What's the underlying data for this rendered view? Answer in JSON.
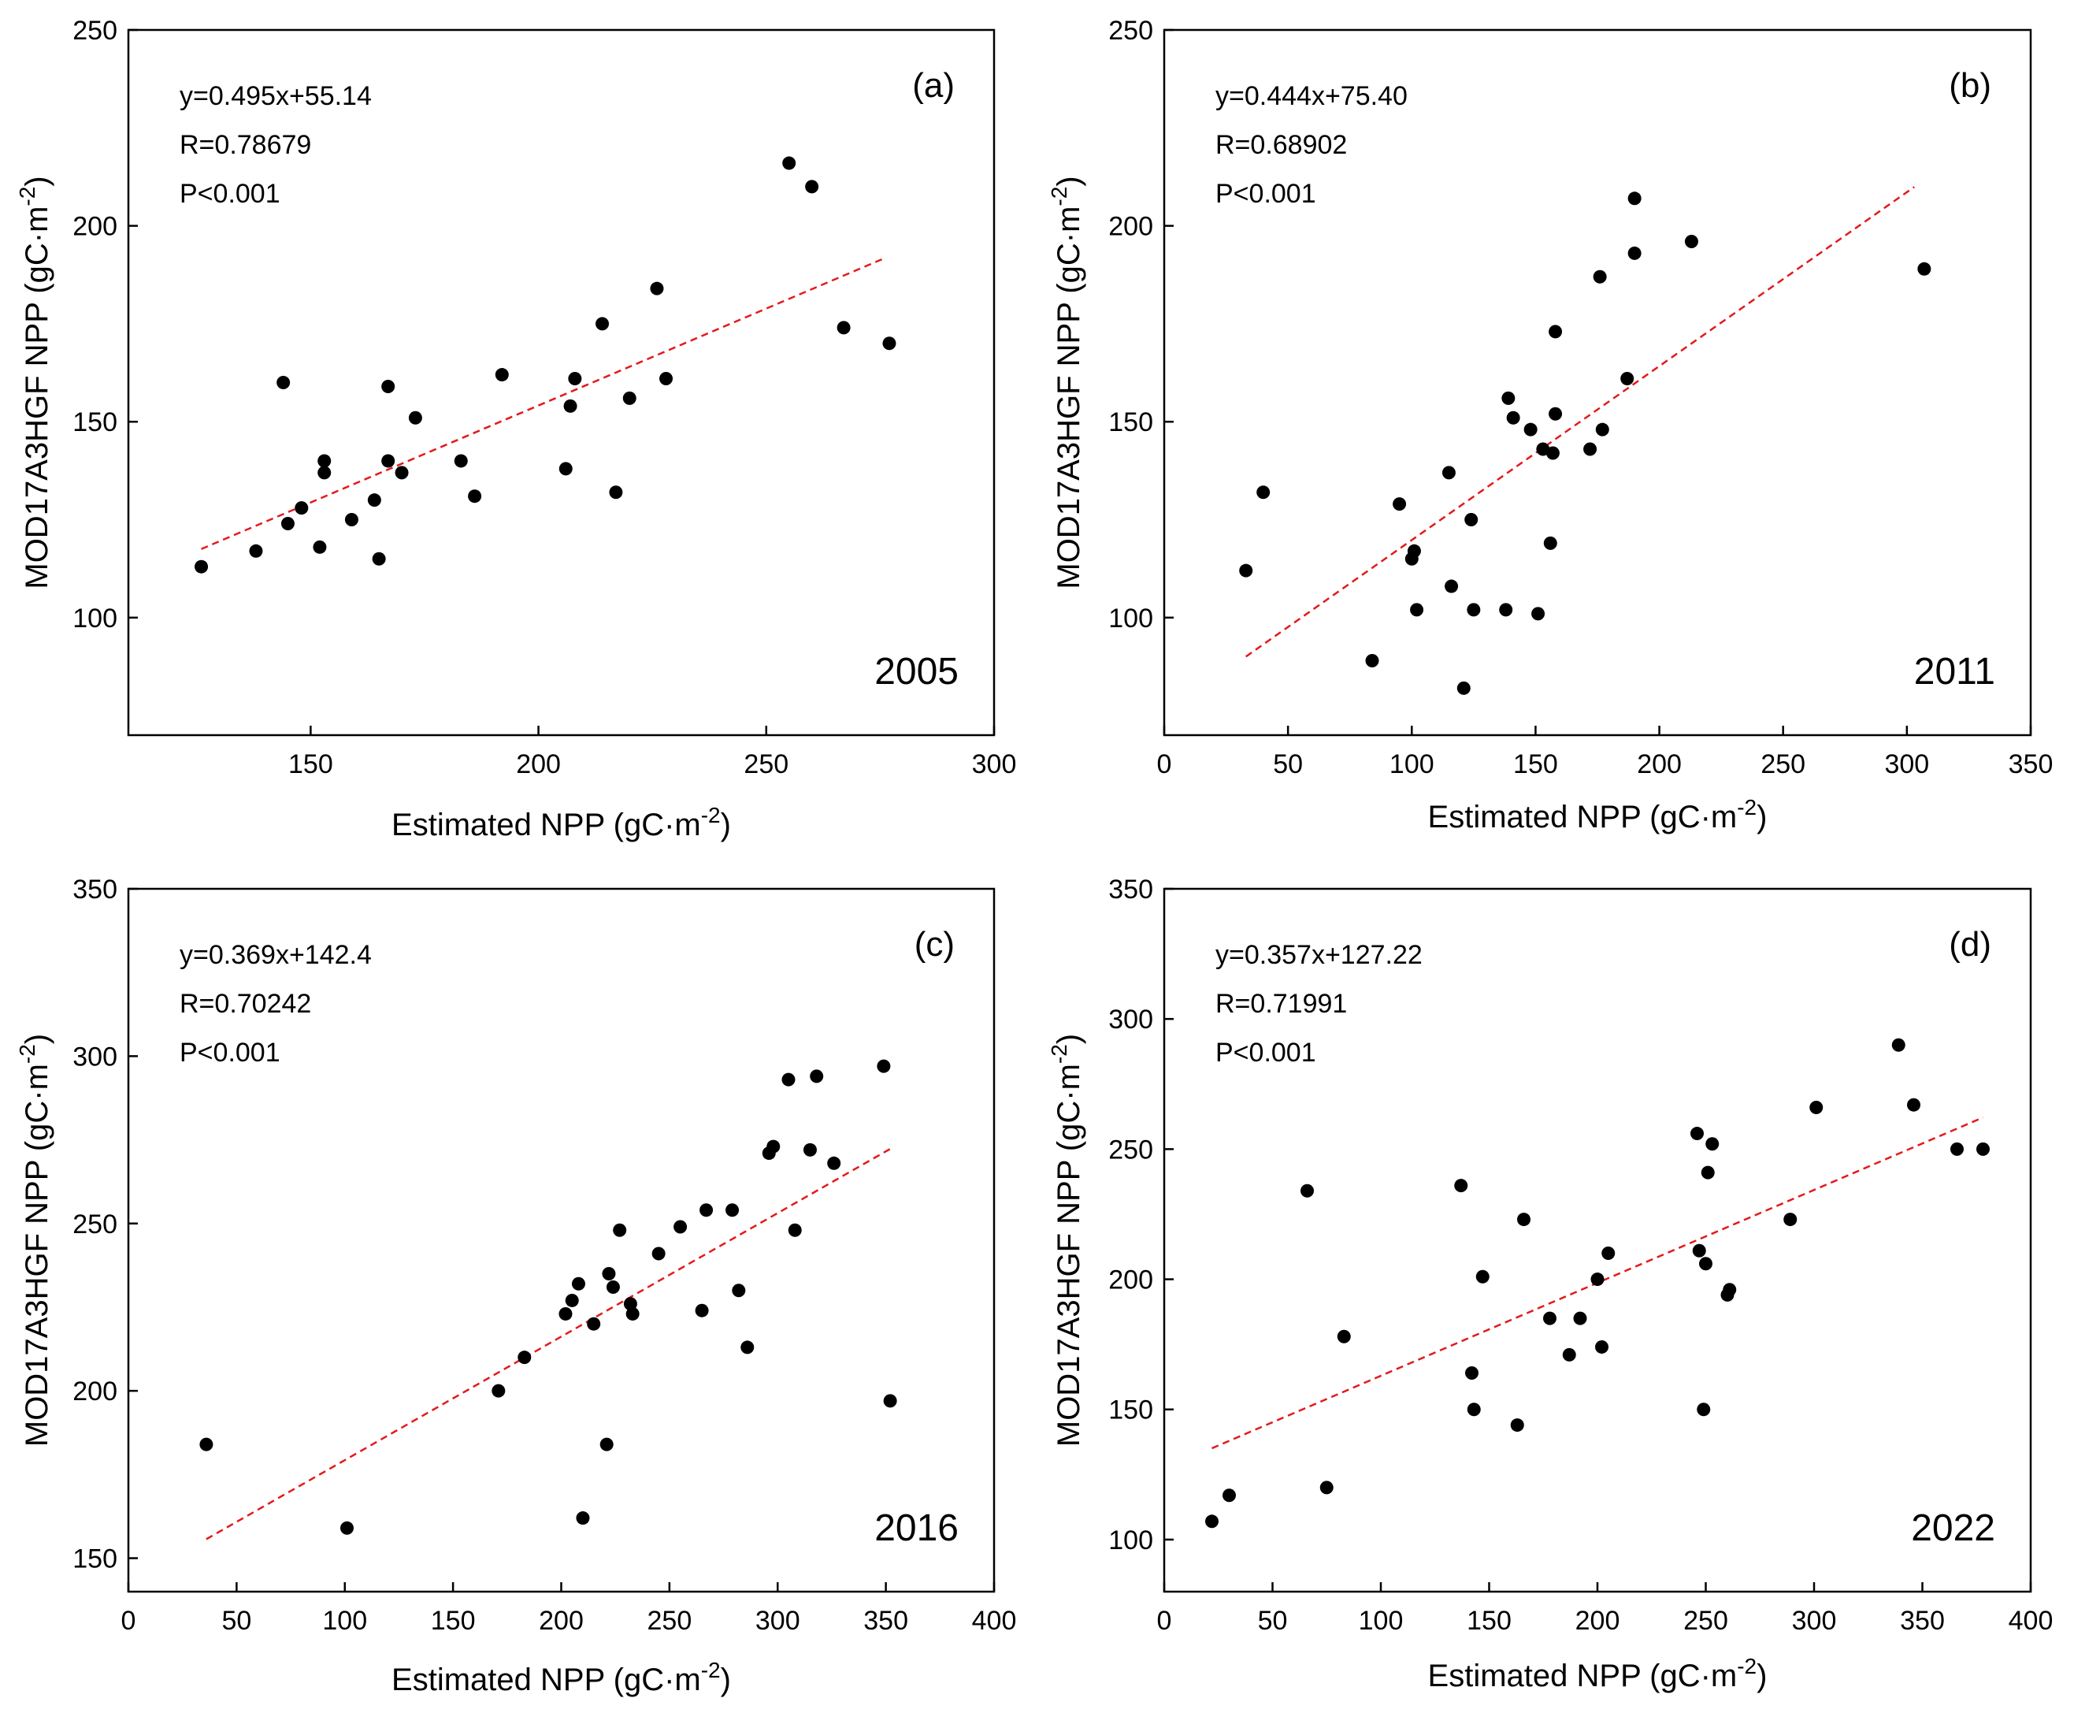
{
  "chart_data": [
    {
      "type": "scatter",
      "panel_label": "(a)",
      "year": "2005",
      "xlabel": "Estimated NPP (gC·m",
      "ylabel": "MOD17A3HGF NPP (gC·m",
      "unit_exponent": "-2",
      "xlim": [
        110,
        300
      ],
      "ylim": [
        70,
        250
      ],
      "xticks": [
        150,
        200,
        250,
        300
      ],
      "yticks": [
        100,
        150,
        200,
        250
      ],
      "equation": "y=0.495x+55.14",
      "r_text": "R=0.78679",
      "p_text": "P<0.001",
      "fit": {
        "slope": 0.495,
        "intercept": 55.14,
        "x_range": [
          126,
          276
        ]
      },
      "x": [
        126,
        138,
        144,
        145,
        148,
        152,
        153,
        153,
        159,
        164,
        165,
        167,
        167,
        170,
        173,
        183,
        186,
        192,
        206,
        207,
        208,
        214,
        217,
        220,
        226,
        228,
        255,
        260,
        267,
        277
      ],
      "y": [
        113,
        117,
        160,
        124,
        128,
        118,
        137,
        140,
        125,
        130,
        115,
        159,
        140,
        137,
        151,
        140,
        131,
        162,
        138,
        154,
        161,
        175,
        132,
        156,
        184,
        161,
        216,
        210,
        174,
        170
      ]
    },
    {
      "type": "scatter",
      "panel_label": "(b)",
      "year": "2011",
      "xlabel": "Estimated NPP (gC·m",
      "ylabel": "MOD17A3HGF NPP (gC·m",
      "unit_exponent": "-2",
      "xlim": [
        0,
        350
      ],
      "ylim": [
        70,
        250
      ],
      "xticks": [
        0,
        50,
        100,
        150,
        200,
        250,
        300,
        350
      ],
      "yticks": [
        100,
        150,
        200,
        250
      ],
      "equation": "y=0.444x+75.40",
      "r_text": "R=0.68902",
      "p_text": "P<0.001",
      "fit": {
        "slope": 0.444,
        "intercept": 75.4,
        "x_range": [
          33,
          303
        ]
      },
      "x": [
        33,
        40,
        84,
        95,
        100,
        101,
        102,
        115,
        116,
        121,
        124,
        125,
        138,
        139,
        141,
        148,
        151,
        153,
        156,
        157,
        158,
        158,
        172,
        176,
        177,
        187,
        190,
        190,
        213,
        307
      ],
      "y": [
        112,
        132,
        89,
        129,
        115,
        117,
        102,
        137,
        108,
        82,
        125,
        102,
        102,
        156,
        151,
        148,
        101,
        143,
        119,
        142,
        173,
        152,
        143,
        187,
        148,
        161,
        207,
        193,
        196,
        189
      ]
    },
    {
      "type": "scatter",
      "panel_label": "(c)",
      "year": "2016",
      "xlabel": "Estimated NPP (gC·m",
      "ylabel": "MOD17A3HGF NPP (gC·m",
      "unit_exponent": "-2",
      "xlim": [
        0,
        400
      ],
      "ylim": [
        140,
        350
      ],
      "xticks": [
        0,
        50,
        100,
        150,
        200,
        250,
        300,
        350,
        400
      ],
      "yticks": [
        150,
        200,
        250,
        300,
        350
      ],
      "equation": "y=0.369x+142.4",
      "r_text": "R=0.70242",
      "p_text": "P<0.001",
      "fit": {
        "slope": 0.369,
        "intercept": 142.4,
        "x_range": [
          36,
          353
        ]
      },
      "x": [
        36,
        101,
        171,
        183,
        202,
        205,
        208,
        210,
        215,
        221,
        222,
        224,
        227,
        232,
        233,
        245,
        255,
        265,
        267,
        279,
        282,
        286,
        296,
        298,
        305,
        308,
        315,
        318,
        326,
        349,
        352
      ],
      "y": [
        184,
        159,
        200,
        210,
        223,
        227,
        232,
        162,
        220,
        184,
        235,
        231,
        248,
        226,
        223,
        241,
        249,
        224,
        254,
        254,
        230,
        213,
        271,
        273,
        293,
        248,
        272,
        294,
        268,
        297,
        197
      ]
    },
    {
      "type": "scatter",
      "panel_label": "(d)",
      "year": "2022",
      "xlabel": "Estimated NPP (gC·m",
      "ylabel": "MOD17A3HGF NPP (gC·m",
      "unit_exponent": "-2",
      "xlim": [
        0,
        400
      ],
      "ylim": [
        80,
        350
      ],
      "xticks": [
        0,
        50,
        100,
        150,
        200,
        250,
        300,
        350,
        400
      ],
      "yticks": [
        100,
        150,
        200,
        250,
        300,
        350
      ],
      "equation": "y=0.357x+127.22",
      "r_text": "R=0.71991",
      "p_text": "P<0.001",
      "fit": {
        "slope": 0.357,
        "intercept": 127.22,
        "x_range": [
          22,
          378
        ]
      },
      "x": [
        22,
        30,
        66,
        75,
        83,
        137,
        142,
        143,
        147,
        163,
        166,
        178,
        187,
        192,
        200,
        202,
        205,
        246,
        247,
        249,
        250,
        251,
        253,
        260,
        261,
        289,
        301,
        339,
        346,
        366,
        378
      ],
      "y": [
        107,
        117,
        234,
        120,
        178,
        236,
        164,
        150,
        201,
        144,
        223,
        185,
        171,
        185,
        200,
        174,
        210,
        256,
        211,
        150,
        206,
        241,
        252,
        194,
        196,
        223,
        266,
        290,
        267,
        250,
        250
      ]
    }
  ]
}
